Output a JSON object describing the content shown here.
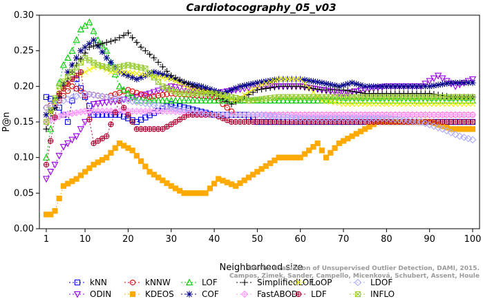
{
  "chart_data": {
    "type": "line",
    "title": "Cardiotocography_05_v03",
    "xlabel": "Neighborhood size",
    "ylabel": "P@n",
    "xlim": [
      0,
      100
    ],
    "ylim": [
      0,
      0.3
    ],
    "xticks": [
      1,
      10,
      20,
      30,
      40,
      50,
      60,
      70,
      80,
      90,
      100
    ],
    "yticks": [
      "0.00",
      "0.05",
      "0.10",
      "0.15",
      "0.20",
      "0.25",
      "0.30"
    ],
    "grid": false,
    "legend_position": "bottom",
    "credit": "Campos, Zimek, Sander, Campello, Micenková, Schubert, Assent, Houle",
    "credit_line1": "On the Evaluation of Unsupervised Outlier Detection, DAMI, 2015.",
    "series": [
      {
        "name": "kNN",
        "color": "#0000ee",
        "marker": "square",
        "dash": "2,3",
        "knots": [
          [
            1,
            0.185
          ],
          [
            3,
            0.18
          ],
          [
            6,
            0.15
          ],
          [
            8,
            0.21
          ],
          [
            12,
            0.16
          ],
          [
            18,
            0.16
          ],
          [
            22,
            0.15
          ],
          [
            30,
            0.175
          ],
          [
            40,
            0.16
          ],
          [
            47,
            0.16
          ],
          [
            50,
            0.15
          ],
          [
            60,
            0.15
          ],
          [
            73,
            0.15
          ],
          [
            80,
            0.15
          ],
          [
            85,
            0.15
          ],
          [
            89,
            0.15
          ],
          [
            93,
            0.15
          ],
          [
            100,
            0.15
          ]
        ]
      },
      {
        "name": "ODIN",
        "color": "#9900ee",
        "marker": "triangle-down",
        "dash": "2,3",
        "knots": [
          [
            1,
            0.07
          ],
          [
            3,
            0.09
          ],
          [
            5,
            0.115
          ],
          [
            8,
            0.13
          ],
          [
            10,
            0.15
          ],
          [
            12,
            0.175
          ],
          [
            18,
            0.18
          ],
          [
            25,
            0.19
          ],
          [
            30,
            0.2
          ],
          [
            40,
            0.19
          ],
          [
            50,
            0.2
          ],
          [
            60,
            0.2
          ],
          [
            70,
            0.19
          ],
          [
            80,
            0.2
          ],
          [
            88,
            0.2
          ],
          [
            92,
            0.215
          ],
          [
            96,
            0.2
          ],
          [
            100,
            0.21
          ]
        ]
      },
      {
        "name": "kNNW",
        "color": "#dd0000",
        "marker": "circle",
        "dash": "2,3",
        "knots": [
          [
            1,
            0.17
          ],
          [
            4,
            0.18
          ],
          [
            7,
            0.2
          ],
          [
            10,
            0.19
          ],
          [
            15,
            0.185
          ],
          [
            20,
            0.195
          ],
          [
            25,
            0.185
          ],
          [
            30,
            0.19
          ],
          [
            40,
            0.185
          ],
          [
            45,
            0.16
          ],
          [
            50,
            0.16
          ],
          [
            60,
            0.16
          ],
          [
            70,
            0.16
          ],
          [
            80,
            0.16
          ],
          [
            90,
            0.16
          ],
          [
            100,
            0.16
          ]
        ]
      },
      {
        "name": "KDEOS",
        "color": "#ffaa00",
        "marker": "square-filled",
        "dash": "2,3",
        "knots": [
          [
            1,
            0.02
          ],
          [
            2,
            0.02
          ],
          [
            3,
            0.025
          ],
          [
            5,
            0.06
          ],
          [
            8,
            0.07
          ],
          [
            10,
            0.08
          ],
          [
            12,
            0.09
          ],
          [
            15,
            0.1
          ],
          [
            18,
            0.12
          ],
          [
            21,
            0.11
          ],
          [
            25,
            0.08
          ],
          [
            30,
            0.06
          ],
          [
            33,
            0.05
          ],
          [
            38,
            0.05
          ],
          [
            41,
            0.07
          ],
          [
            45,
            0.06
          ],
          [
            50,
            0.08
          ],
          [
            55,
            0.1
          ],
          [
            60,
            0.1
          ],
          [
            64,
            0.12
          ],
          [
            66,
            0.1
          ],
          [
            69,
            0.12
          ],
          [
            72,
            0.13
          ],
          [
            75,
            0.14
          ],
          [
            78,
            0.15
          ],
          [
            82,
            0.15
          ],
          [
            90,
            0.15
          ],
          [
            95,
            0.14
          ],
          [
            100,
            0.14
          ]
        ]
      },
      {
        "name": "LOF",
        "color": "#00cc00",
        "marker": "triangle",
        "dash": "2,3",
        "knots": [
          [
            1,
            0.1
          ],
          [
            3,
            0.18
          ],
          [
            5,
            0.23
          ],
          [
            7,
            0.25
          ],
          [
            9,
            0.28
          ],
          [
            11,
            0.29
          ],
          [
            13,
            0.265
          ],
          [
            15,
            0.25
          ],
          [
            18,
            0.2
          ],
          [
            22,
            0.18
          ],
          [
            30,
            0.18
          ],
          [
            40,
            0.18
          ],
          [
            50,
            0.18
          ],
          [
            60,
            0.18
          ],
          [
            70,
            0.18
          ],
          [
            80,
            0.18
          ],
          [
            90,
            0.18
          ],
          [
            100,
            0.18
          ]
        ]
      },
      {
        "name": "COF",
        "color": "#000088",
        "marker": "asterisk",
        "dash": "2,3",
        "knots": [
          [
            1,
            0.16
          ],
          [
            3,
            0.17
          ],
          [
            6,
            0.22
          ],
          [
            9,
            0.25
          ],
          [
            12,
            0.265
          ],
          [
            15,
            0.24
          ],
          [
            18,
            0.22
          ],
          [
            22,
            0.21
          ],
          [
            26,
            0.22
          ],
          [
            29,
            0.215
          ],
          [
            33,
            0.205
          ],
          [
            37,
            0.2
          ],
          [
            42,
            0.19
          ],
          [
            46,
            0.2
          ],
          [
            50,
            0.205
          ],
          [
            55,
            0.21
          ],
          [
            60,
            0.21
          ],
          [
            65,
            0.205
          ],
          [
            69,
            0.2
          ],
          [
            72,
            0.205
          ],
          [
            75,
            0.2
          ],
          [
            80,
            0.2
          ],
          [
            85,
            0.2
          ],
          [
            90,
            0.2
          ],
          [
            95,
            0.205
          ],
          [
            100,
            0.205
          ]
        ]
      },
      {
        "name": "SimplifiedLOF",
        "color": "#000000",
        "marker": "plus",
        "dash": "2,3",
        "knots": [
          [
            1,
            0.14
          ],
          [
            3,
            0.17
          ],
          [
            5,
            0.2
          ],
          [
            8,
            0.23
          ],
          [
            11,
            0.255
          ],
          [
            14,
            0.26
          ],
          [
            17,
            0.265
          ],
          [
            20,
            0.275
          ],
          [
            23,
            0.255
          ],
          [
            26,
            0.24
          ],
          [
            30,
            0.215
          ],
          [
            35,
            0.2
          ],
          [
            40,
            0.19
          ],
          [
            44,
            0.175
          ],
          [
            50,
            0.195
          ],
          [
            55,
            0.2
          ],
          [
            60,
            0.2
          ],
          [
            65,
            0.195
          ],
          [
            70,
            0.195
          ],
          [
            75,
            0.19
          ],
          [
            80,
            0.19
          ],
          [
            85,
            0.19
          ],
          [
            90,
            0.19
          ],
          [
            95,
            0.185
          ],
          [
            100,
            0.185
          ]
        ]
      },
      {
        "name": "FastABOD",
        "color": "#ff99ff",
        "marker": "diamond-dot",
        "dash": "2,3",
        "knots": [
          [
            1,
            0.15
          ],
          [
            5,
            0.16
          ],
          [
            10,
            0.165
          ],
          [
            20,
            0.165
          ],
          [
            30,
            0.165
          ],
          [
            40,
            0.16
          ],
          [
            50,
            0.16
          ],
          [
            60,
            0.16
          ],
          [
            70,
            0.16
          ],
          [
            80,
            0.16
          ],
          [
            90,
            0.16
          ],
          [
            100,
            0.16
          ]
        ]
      },
      {
        "name": "LoOP",
        "color": "#eeee00",
        "marker": "x",
        "dash": "2,3",
        "knots": [
          [
            1,
            0.15
          ],
          [
            4,
            0.19
          ],
          [
            7,
            0.21
          ],
          [
            10,
            0.22
          ],
          [
            13,
            0.23
          ],
          [
            16,
            0.22
          ],
          [
            20,
            0.22
          ],
          [
            25,
            0.215
          ],
          [
            30,
            0.21
          ],
          [
            35,
            0.195
          ],
          [
            40,
            0.19
          ],
          [
            45,
            0.18
          ],
          [
            50,
            0.2
          ],
          [
            55,
            0.21
          ],
          [
            60,
            0.21
          ],
          [
            65,
            0.18
          ],
          [
            70,
            0.175
          ],
          [
            80,
            0.175
          ],
          [
            90,
            0.175
          ],
          [
            100,
            0.175
          ]
        ]
      },
      {
        "name": "LDF",
        "color": "#b00030",
        "marker": "circle-plus",
        "dash": "2,3",
        "knots": [
          [
            1,
            0.09
          ],
          [
            4,
            0.19
          ],
          [
            7,
            0.21
          ],
          [
            9,
            0.22
          ],
          [
            12,
            0.12
          ],
          [
            15,
            0.13
          ],
          [
            18,
            0.18
          ],
          [
            22,
            0.14
          ],
          [
            28,
            0.14
          ],
          [
            34,
            0.16
          ],
          [
            40,
            0.16
          ],
          [
            44,
            0.15
          ],
          [
            50,
            0.15
          ],
          [
            60,
            0.15
          ],
          [
            70,
            0.15
          ],
          [
            80,
            0.15
          ],
          [
            90,
            0.15
          ],
          [
            100,
            0.15
          ]
        ]
      },
      {
        "name": "LDOF",
        "color": "#aaaaff",
        "marker": "diamond",
        "dash": "2,3",
        "knots": [
          [
            1,
            0.17
          ],
          [
            5,
            0.18
          ],
          [
            10,
            0.19
          ],
          [
            20,
            0.18
          ],
          [
            30,
            0.17
          ],
          [
            40,
            0.16
          ],
          [
            50,
            0.16
          ],
          [
            60,
            0.155
          ],
          [
            70,
            0.155
          ],
          [
            80,
            0.155
          ],
          [
            88,
            0.15
          ],
          [
            93,
            0.14
          ],
          [
            97,
            0.13
          ],
          [
            100,
            0.125
          ]
        ]
      },
      {
        "name": "INFLO",
        "color": "#99cc33",
        "marker": "square-x",
        "dash": "2,3",
        "knots": [
          [
            1,
            0.15
          ],
          [
            4,
            0.2
          ],
          [
            7,
            0.22
          ],
          [
            10,
            0.24
          ],
          [
            13,
            0.23
          ],
          [
            16,
            0.225
          ],
          [
            20,
            0.23
          ],
          [
            24,
            0.225
          ],
          [
            28,
            0.2
          ],
          [
            32,
            0.19
          ],
          [
            40,
            0.19
          ],
          [
            48,
            0.18
          ],
          [
            55,
            0.185
          ],
          [
            60,
            0.185
          ],
          [
            65,
            0.185
          ],
          [
            70,
            0.185
          ],
          [
            80,
            0.185
          ],
          [
            90,
            0.185
          ],
          [
            100,
            0.185
          ]
        ]
      }
    ]
  }
}
